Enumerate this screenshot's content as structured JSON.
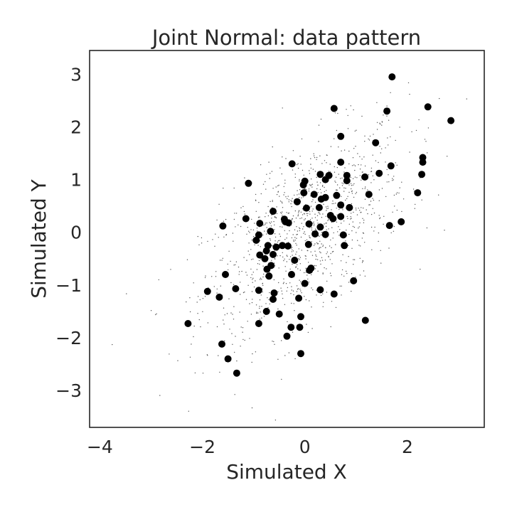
{
  "chart_data": {
    "type": "scatter",
    "title": "Joint Normal: data pattern",
    "xlabel": "Simulated X",
    "ylabel": "Simulated Y",
    "xlim": [
      -4.2,
      3.5
    ],
    "ylim": [
      -3.7,
      3.45
    ],
    "x_ticks": [
      -4,
      -2,
      0,
      2
    ],
    "x_tick_labels": [
      "−4",
      "−2",
      "0",
      "2"
    ],
    "y_ticks": [
      -3,
      -2,
      -1,
      0,
      1,
      2,
      3
    ],
    "y_tick_labels": [
      "−3",
      "−2",
      "−1",
      "0",
      "1",
      "2",
      "3"
    ],
    "grid": false,
    "legend": "none",
    "colors": {
      "sample_points": "#000000",
      "population_points": "#555555",
      "frame": "#262626"
    },
    "series": [
      {
        "values": [
          [
            1.7,
            2.95
          ],
          [
            0.57,
            2.35
          ],
          [
            1.6,
            2.3
          ],
          [
            2.4,
            2.38
          ],
          [
            2.85,
            2.12
          ],
          [
            0.7,
            1.82
          ],
          [
            1.38,
            1.7
          ],
          [
            -0.25,
            1.3
          ],
          [
            0.7,
            1.33
          ],
          [
            2.3,
            1.42
          ],
          [
            2.3,
            1.33
          ],
          [
            1.68,
            1.26
          ],
          [
            0.3,
            1.1
          ],
          [
            0.47,
            1.08
          ],
          [
            0.82,
            1.08
          ],
          [
            1.45,
            1.12
          ],
          [
            2.28,
            1.1
          ],
          [
            1.17,
            1.05
          ],
          [
            0.4,
            1.0
          ],
          [
            0.82,
            0.98
          ],
          [
            -1.1,
            0.93
          ],
          [
            -0.03,
            0.9
          ],
          [
            0.0,
            0.97
          ],
          [
            -0.02,
            0.75
          ],
          [
            1.25,
            0.72
          ],
          [
            2.2,
            0.75
          ],
          [
            0.18,
            0.72
          ],
          [
            0.62,
            0.7
          ],
          [
            0.4,
            0.66
          ],
          [
            0.32,
            0.63
          ],
          [
            -0.15,
            0.58
          ],
          [
            0.03,
            0.46
          ],
          [
            0.28,
            0.47
          ],
          [
            0.7,
            0.52
          ],
          [
            0.87,
            0.47
          ],
          [
            -0.62,
            0.4
          ],
          [
            -1.15,
            0.26
          ],
          [
            0.5,
            0.32
          ],
          [
            0.55,
            0.26
          ],
          [
            -0.4,
            0.25
          ],
          [
            -0.38,
            0.2
          ],
          [
            -0.32,
            0.18
          ],
          [
            1.65,
            0.13
          ],
          [
            1.88,
            0.2
          ],
          [
            -1.6,
            0.12
          ],
          [
            -0.88,
            0.17
          ],
          [
            0.08,
            0.16
          ],
          [
            0.7,
            0.3
          ],
          [
            0.3,
            0.1
          ],
          [
            -0.67,
            0.02
          ],
          [
            -0.9,
            -0.05
          ],
          [
            0.2,
            -0.03
          ],
          [
            0.4,
            -0.04
          ],
          [
            0.75,
            -0.05
          ],
          [
            -0.95,
            -0.15
          ],
          [
            -0.72,
            -0.25
          ],
          [
            -0.44,
            -0.25
          ],
          [
            -0.33,
            -0.26
          ],
          [
            0.07,
            -0.23
          ],
          [
            -0.56,
            -0.28
          ],
          [
            0.77,
            -0.25
          ],
          [
            -0.75,
            -0.35
          ],
          [
            -0.88,
            -0.43
          ],
          [
            -0.62,
            -0.42
          ],
          [
            -0.78,
            -0.5
          ],
          [
            -0.2,
            -0.53
          ],
          [
            -0.66,
            -0.63
          ],
          [
            0.12,
            -0.68
          ],
          [
            0.09,
            -0.72
          ],
          [
            -0.74,
            -0.7
          ],
          [
            -1.55,
            -0.8
          ],
          [
            -0.26,
            -0.8
          ],
          [
            -0.7,
            -0.83
          ],
          [
            0.95,
            -0.92
          ],
          [
            0.0,
            -0.97
          ],
          [
            -1.35,
            -1.07
          ],
          [
            -0.9,
            -1.1
          ],
          [
            -0.6,
            -1.15
          ],
          [
            0.57,
            -1.17
          ],
          [
            -1.9,
            -1.12
          ],
          [
            -0.62,
            -1.27
          ],
          [
            -0.12,
            -1.25
          ],
          [
            -1.67,
            -1.23
          ],
          [
            0.3,
            -1.09
          ],
          [
            -0.75,
            -1.5
          ],
          [
            -0.5,
            -1.55
          ],
          [
            -0.9,
            -1.73
          ],
          [
            -0.08,
            -1.6
          ],
          [
            -0.27,
            -1.8
          ],
          [
            -0.1,
            -1.8
          ],
          [
            -0.35,
            -1.97
          ],
          [
            -2.28,
            -1.73
          ],
          [
            1.18,
            -1.67
          ],
          [
            -1.62,
            -2.12
          ],
          [
            -1.5,
            -2.4
          ],
          [
            -0.08,
            -2.3
          ],
          [
            -1.33,
            -2.67
          ]
        ]
      }
    ]
  }
}
